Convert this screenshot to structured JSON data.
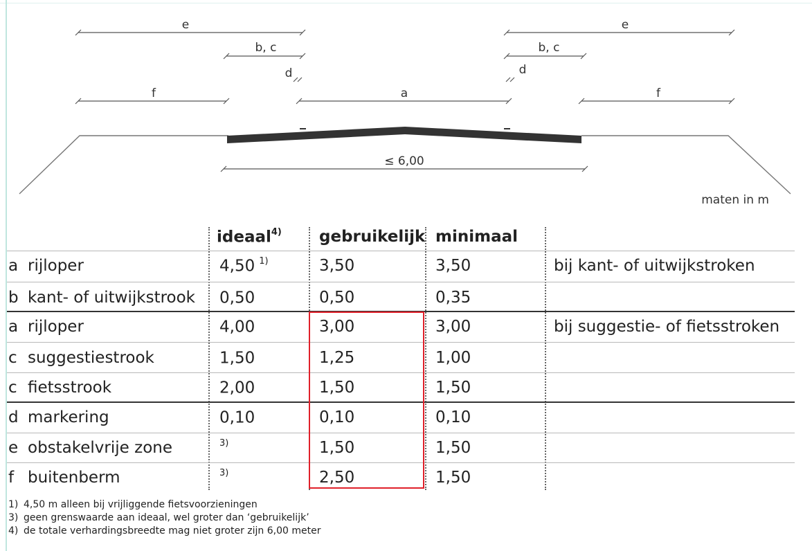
{
  "diagram": {
    "labels": {
      "e_left": "e",
      "bc_left": "b, c",
      "d_left": "d",
      "f_left": "f",
      "a_center": "a",
      "e_right": "e",
      "bc_right": "b, c",
      "d_right": "d",
      "f_right": "f",
      "width_limit": "≤ 6,00",
      "units_note": "maten in m"
    }
  },
  "table": {
    "headers": {
      "ideaal": "ideaal",
      "ideaal_sup": "4)",
      "gebruikelijk": "gebruikelijk",
      "minimaal": "minimaal"
    },
    "rows": [
      {
        "code": "a",
        "name": "rijloper",
        "ideaal": "4,50",
        "ideaal_sup": "1)",
        "gebruikelijk": "3,50",
        "minimaal": "3,50",
        "note": "bij kant- of uitwijkstroken"
      },
      {
        "code": "b",
        "name": "kant- of uitwijkstrook",
        "ideaal": "0,50",
        "ideaal_sup": "",
        "gebruikelijk": "0,50",
        "minimaal": "0,35",
        "note": ""
      },
      {
        "code": "a",
        "name": "rijloper",
        "ideaal": "4,00",
        "ideaal_sup": "",
        "gebruikelijk": "3,00",
        "minimaal": "3,00",
        "note": "bij suggestie- of fietsstroken"
      },
      {
        "code": "c",
        "name": "suggestiestrook",
        "ideaal": "1,50",
        "ideaal_sup": "",
        "gebruikelijk": "1,25",
        "minimaal": "1,00",
        "note": ""
      },
      {
        "code": "c",
        "name": "fietsstrook",
        "ideaal": "2,00",
        "ideaal_sup": "",
        "gebruikelijk": "1,50",
        "minimaal": "1,50",
        "note": ""
      },
      {
        "code": "d",
        "name": "markering",
        "ideaal": "0,10",
        "ideaal_sup": "",
        "gebruikelijk": "0,10",
        "minimaal": "0,10",
        "note": ""
      },
      {
        "code": "e",
        "name": "obstakelvrije zone",
        "ideaal": "",
        "ideaal_sup": "3)",
        "gebruikelijk": "1,50",
        "minimaal": "1,50",
        "note": ""
      },
      {
        "code": "f",
        "name": "buitenberm",
        "ideaal": "",
        "ideaal_sup": "3)",
        "gebruikelijk": "2,50",
        "minimaal": "1,50",
        "note": ""
      }
    ]
  },
  "footnotes": [
    {
      "num": "1)",
      "text": "4,50 m alleen bij vrijliggende fietsvoorzieningen"
    },
    {
      "num": "3)",
      "text": "geen grenswaarde aan ideaal, wel groter dan ‘gebruikelijk’"
    },
    {
      "num": "4)",
      "text": "de totale verhardingsbreedte mag niet groter zijn 6,00 meter"
    }
  ],
  "highlight_color": "#e0202a"
}
